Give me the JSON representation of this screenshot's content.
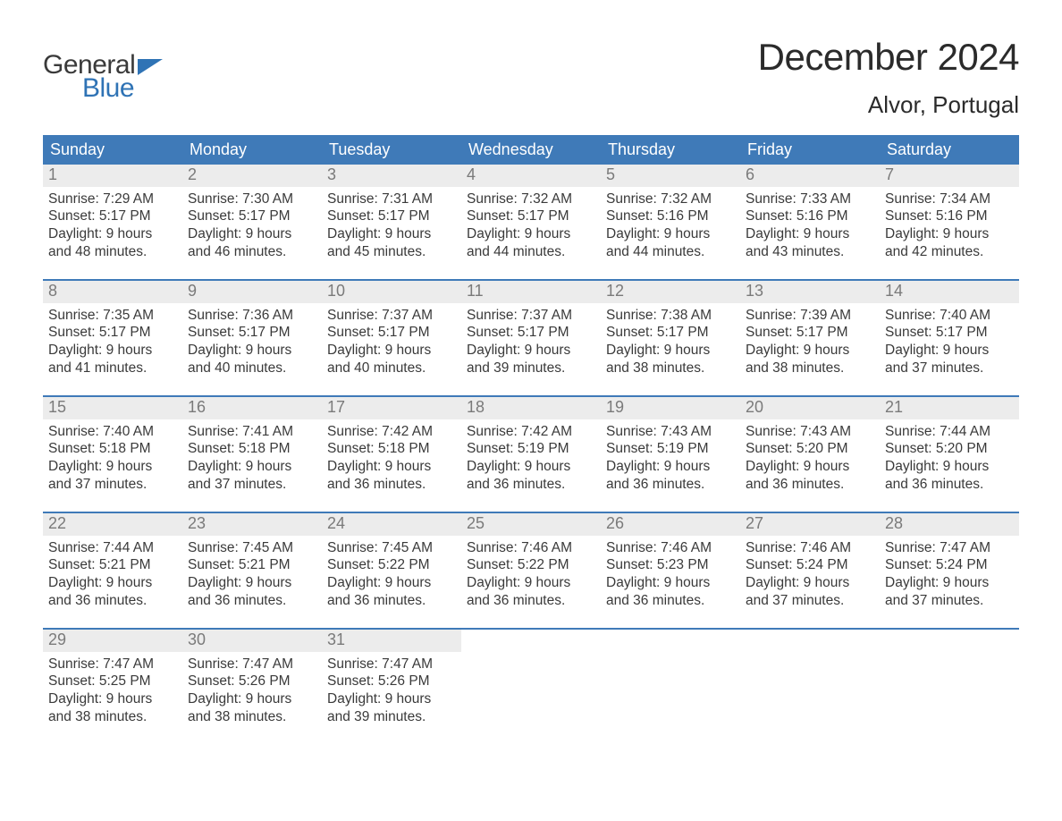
{
  "logo": {
    "text_general": "General",
    "text_blue": "Blue",
    "flag_color": "#2f73b5"
  },
  "title": "December 2024",
  "location": "Alvor, Portugal",
  "colors": {
    "header_bg": "#3f7ab8",
    "header_text": "#ffffff",
    "daynum_bg": "#ececec",
    "daynum_text": "#7a7a7a",
    "body_text": "#3a3a3a",
    "week_border": "#3f7ab8",
    "page_bg": "#ffffff"
  },
  "layout": {
    "columns": 7,
    "rows": 5,
    "font_family": "Arial",
    "weekday_fontsize": 18,
    "daynum_fontsize": 18,
    "content_fontsize": 15.5,
    "title_fontsize": 42,
    "location_fontsize": 26
  },
  "weekdays": [
    "Sunday",
    "Monday",
    "Tuesday",
    "Wednesday",
    "Thursday",
    "Friday",
    "Saturday"
  ],
  "weeks": [
    [
      {
        "n": "1",
        "sunrise": "7:29 AM",
        "sunset": "5:17 PM",
        "dl1": "Daylight: 9 hours",
        "dl2": "and 48 minutes."
      },
      {
        "n": "2",
        "sunrise": "7:30 AM",
        "sunset": "5:17 PM",
        "dl1": "Daylight: 9 hours",
        "dl2": "and 46 minutes."
      },
      {
        "n": "3",
        "sunrise": "7:31 AM",
        "sunset": "5:17 PM",
        "dl1": "Daylight: 9 hours",
        "dl2": "and 45 minutes."
      },
      {
        "n": "4",
        "sunrise": "7:32 AM",
        "sunset": "5:17 PM",
        "dl1": "Daylight: 9 hours",
        "dl2": "and 44 minutes."
      },
      {
        "n": "5",
        "sunrise": "7:32 AM",
        "sunset": "5:16 PM",
        "dl1": "Daylight: 9 hours",
        "dl2": "and 44 minutes."
      },
      {
        "n": "6",
        "sunrise": "7:33 AM",
        "sunset": "5:16 PM",
        "dl1": "Daylight: 9 hours",
        "dl2": "and 43 minutes."
      },
      {
        "n": "7",
        "sunrise": "7:34 AM",
        "sunset": "5:16 PM",
        "dl1": "Daylight: 9 hours",
        "dl2": "and 42 minutes."
      }
    ],
    [
      {
        "n": "8",
        "sunrise": "7:35 AM",
        "sunset": "5:17 PM",
        "dl1": "Daylight: 9 hours",
        "dl2": "and 41 minutes."
      },
      {
        "n": "9",
        "sunrise": "7:36 AM",
        "sunset": "5:17 PM",
        "dl1": "Daylight: 9 hours",
        "dl2": "and 40 minutes."
      },
      {
        "n": "10",
        "sunrise": "7:37 AM",
        "sunset": "5:17 PM",
        "dl1": "Daylight: 9 hours",
        "dl2": "and 40 minutes."
      },
      {
        "n": "11",
        "sunrise": "7:37 AM",
        "sunset": "5:17 PM",
        "dl1": "Daylight: 9 hours",
        "dl2": "and 39 minutes."
      },
      {
        "n": "12",
        "sunrise": "7:38 AM",
        "sunset": "5:17 PM",
        "dl1": "Daylight: 9 hours",
        "dl2": "and 38 minutes."
      },
      {
        "n": "13",
        "sunrise": "7:39 AM",
        "sunset": "5:17 PM",
        "dl1": "Daylight: 9 hours",
        "dl2": "and 38 minutes."
      },
      {
        "n": "14",
        "sunrise": "7:40 AM",
        "sunset": "5:17 PM",
        "dl1": "Daylight: 9 hours",
        "dl2": "and 37 minutes."
      }
    ],
    [
      {
        "n": "15",
        "sunrise": "7:40 AM",
        "sunset": "5:18 PM",
        "dl1": "Daylight: 9 hours",
        "dl2": "and 37 minutes."
      },
      {
        "n": "16",
        "sunrise": "7:41 AM",
        "sunset": "5:18 PM",
        "dl1": "Daylight: 9 hours",
        "dl2": "and 37 minutes."
      },
      {
        "n": "17",
        "sunrise": "7:42 AM",
        "sunset": "5:18 PM",
        "dl1": "Daylight: 9 hours",
        "dl2": "and 36 minutes."
      },
      {
        "n": "18",
        "sunrise": "7:42 AM",
        "sunset": "5:19 PM",
        "dl1": "Daylight: 9 hours",
        "dl2": "and 36 minutes."
      },
      {
        "n": "19",
        "sunrise": "7:43 AM",
        "sunset": "5:19 PM",
        "dl1": "Daylight: 9 hours",
        "dl2": "and 36 minutes."
      },
      {
        "n": "20",
        "sunrise": "7:43 AM",
        "sunset": "5:20 PM",
        "dl1": "Daylight: 9 hours",
        "dl2": "and 36 minutes."
      },
      {
        "n": "21",
        "sunrise": "7:44 AM",
        "sunset": "5:20 PM",
        "dl1": "Daylight: 9 hours",
        "dl2": "and 36 minutes."
      }
    ],
    [
      {
        "n": "22",
        "sunrise": "7:44 AM",
        "sunset": "5:21 PM",
        "dl1": "Daylight: 9 hours",
        "dl2": "and 36 minutes."
      },
      {
        "n": "23",
        "sunrise": "7:45 AM",
        "sunset": "5:21 PM",
        "dl1": "Daylight: 9 hours",
        "dl2": "and 36 minutes."
      },
      {
        "n": "24",
        "sunrise": "7:45 AM",
        "sunset": "5:22 PM",
        "dl1": "Daylight: 9 hours",
        "dl2": "and 36 minutes."
      },
      {
        "n": "25",
        "sunrise": "7:46 AM",
        "sunset": "5:22 PM",
        "dl1": "Daylight: 9 hours",
        "dl2": "and 36 minutes."
      },
      {
        "n": "26",
        "sunrise": "7:46 AM",
        "sunset": "5:23 PM",
        "dl1": "Daylight: 9 hours",
        "dl2": "and 36 minutes."
      },
      {
        "n": "27",
        "sunrise": "7:46 AM",
        "sunset": "5:24 PM",
        "dl1": "Daylight: 9 hours",
        "dl2": "and 37 minutes."
      },
      {
        "n": "28",
        "sunrise": "7:47 AM",
        "sunset": "5:24 PM",
        "dl1": "Daylight: 9 hours",
        "dl2": "and 37 minutes."
      }
    ],
    [
      {
        "n": "29",
        "sunrise": "7:47 AM",
        "sunset": "5:25 PM",
        "dl1": "Daylight: 9 hours",
        "dl2": "and 38 minutes."
      },
      {
        "n": "30",
        "sunrise": "7:47 AM",
        "sunset": "5:26 PM",
        "dl1": "Daylight: 9 hours",
        "dl2": "and 38 minutes."
      },
      {
        "n": "31",
        "sunrise": "7:47 AM",
        "sunset": "5:26 PM",
        "dl1": "Daylight: 9 hours",
        "dl2": "and 39 minutes."
      },
      null,
      null,
      null,
      null
    ]
  ],
  "labels": {
    "sunrise_prefix": "Sunrise: ",
    "sunset_prefix": "Sunset: "
  }
}
